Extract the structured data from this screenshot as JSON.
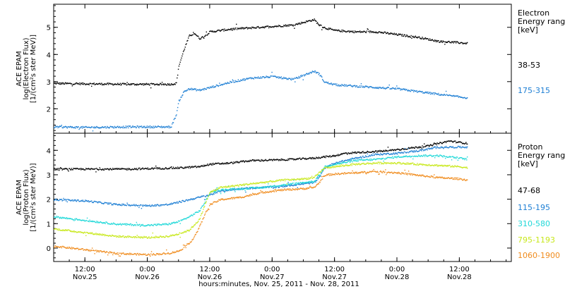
{
  "chart_data": {
    "type": "scatter",
    "xlabel": "hours:minutes, Nov. 25, 2011 - Nov. 28, 2011",
    "xlim": [
      6,
      94
    ],
    "x_units": "hours since 2011-11-25 00:00 UT",
    "x_ticks": [
      {
        "x": 12,
        "time": "12:00",
        "date": "Nov.25"
      },
      {
        "x": 24,
        "time": "0:00",
        "date": "Nov.26"
      },
      {
        "x": 36,
        "time": "12:00",
        "date": "Nov.26"
      },
      {
        "x": 48,
        "time": "0:00",
        "date": "Nov.27"
      },
      {
        "x": 60,
        "time": "12:00",
        "date": "Nov.27"
      },
      {
        "x": 72,
        "time": "0:00",
        "date": "Nov.28"
      },
      {
        "x": 84,
        "time": "12:00",
        "date": "Nov.28"
      }
    ],
    "panels": [
      {
        "id": "electron",
        "ylabel_lines": [
          "ACE EPAM",
          "log(Electron Flux)",
          "[1/(cm²s ster MeV)]"
        ],
        "ylim": [
          1.1,
          5.85
        ],
        "y_ticks": [
          2,
          3,
          4,
          5
        ],
        "legend_title": [
          "Electron",
          "Energy ranges",
          "[keV]"
        ],
        "series": [
          {
            "name": "38-53",
            "color": "#000000",
            "points": [
              [
                6,
                2.95
              ],
              [
                20,
                2.92
              ],
              [
                28.5,
                2.92
              ],
              [
                29.5,
                2.95
              ],
              [
                30,
                3.6
              ],
              [
                31,
                4.2
              ],
              [
                32,
                4.7
              ],
              [
                33,
                4.8
              ],
              [
                34,
                4.6
              ],
              [
                35,
                4.7
              ],
              [
                36,
                4.85
              ],
              [
                40,
                4.95
              ],
              [
                44,
                5.0
              ],
              [
                48,
                5.05
              ],
              [
                52,
                5.1
              ],
              [
                54,
                5.2
              ],
              [
                56,
                5.3
              ],
              [
                57,
                5.1
              ],
              [
                58,
                5.0
              ],
              [
                60,
                4.9
              ],
              [
                64,
                4.85
              ],
              [
                68,
                4.85
              ],
              [
                72,
                4.75
              ],
              [
                76,
                4.65
              ],
              [
                80,
                4.5
              ],
              [
                84,
                4.45
              ],
              [
                85.5,
                4.42
              ]
            ]
          },
          {
            "name": "175-315",
            "color": "#1e7fd4",
            "points": [
              [
                6,
                1.35
              ],
              [
                12,
                1.33
              ],
              [
                20,
                1.35
              ],
              [
                28.5,
                1.35
              ],
              [
                29.5,
                1.8
              ],
              [
                30,
                2.3
              ],
              [
                31,
                2.65
              ],
              [
                32,
                2.75
              ],
              [
                34,
                2.7
              ],
              [
                36,
                2.8
              ],
              [
                40,
                3.0
              ],
              [
                44,
                3.15
              ],
              [
                48,
                3.2
              ],
              [
                52,
                3.1
              ],
              [
                54,
                3.25
              ],
              [
                56,
                3.4
              ],
              [
                57,
                3.3
              ],
              [
                58,
                3.0
              ],
              [
                60,
                2.9
              ],
              [
                64,
                2.85
              ],
              [
                68,
                2.8
              ],
              [
                72,
                2.75
              ],
              [
                76,
                2.65
              ],
              [
                80,
                2.55
              ],
              [
                84,
                2.45
              ],
              [
                85.5,
                2.42
              ]
            ]
          }
        ]
      },
      {
        "id": "proton",
        "ylabel_lines": [
          "ACE EPAM",
          "log(Proton Flux)",
          "[1/(cm²s ster MeV)]"
        ],
        "ylim": [
          -0.55,
          4.7
        ],
        "y_ticks": [
          0,
          1,
          2,
          3,
          4
        ],
        "legend_title": [
          "Proton",
          "Energy ranges",
          "[keV]"
        ],
        "series": [
          {
            "name": "47-68",
            "color": "#000000",
            "points": [
              [
                6,
                3.25
              ],
              [
                20,
                3.25
              ],
              [
                30,
                3.3
              ],
              [
                34,
                3.35
              ],
              [
                36,
                3.45
              ],
              [
                40,
                3.5
              ],
              [
                44,
                3.6
              ],
              [
                48,
                3.62
              ],
              [
                52,
                3.65
              ],
              [
                56,
                3.7
              ],
              [
                58,
                3.75
              ],
              [
                60,
                3.8
              ],
              [
                62,
                3.9
              ],
              [
                66,
                3.95
              ],
              [
                70,
                4.0
              ],
              [
                74,
                4.1
              ],
              [
                78,
                4.2
              ],
              [
                80,
                4.3
              ],
              [
                82,
                4.4
              ],
              [
                85.5,
                4.3
              ]
            ]
          },
          {
            "name": "115-195",
            "color": "#1e7fd4",
            "points": [
              [
                6,
                2.0
              ],
              [
                12,
                1.95
              ],
              [
                18,
                1.8
              ],
              [
                24,
                1.75
              ],
              [
                28,
                1.8
              ],
              [
                30,
                1.9
              ],
              [
                32,
                2.0
              ],
              [
                34,
                2.1
              ],
              [
                36,
                2.2
              ],
              [
                38,
                2.35
              ],
              [
                42,
                2.45
              ],
              [
                46,
                2.5
              ],
              [
                50,
                2.55
              ],
              [
                54,
                2.65
              ],
              [
                56,
                2.7
              ],
              [
                57,
                2.9
              ],
              [
                58,
                3.3
              ],
              [
                60,
                3.5
              ],
              [
                64,
                3.7
              ],
              [
                68,
                3.85
              ],
              [
                72,
                3.9
              ],
              [
                76,
                4.0
              ],
              [
                80,
                4.15
              ],
              [
                84,
                4.15
              ],
              [
                85.5,
                4.15
              ]
            ]
          },
          {
            "name": "310-580",
            "color": "#20d8d8",
            "points": [
              [
                6,
                1.3
              ],
              [
                12,
                1.15
              ],
              [
                18,
                1.0
              ],
              [
                24,
                0.95
              ],
              [
                28,
                1.0
              ],
              [
                30,
                1.1
              ],
              [
                32,
                1.3
              ],
              [
                34,
                1.55
              ],
              [
                35,
                1.9
              ],
              [
                36,
                2.3
              ],
              [
                38,
                2.4
              ],
              [
                42,
                2.45
              ],
              [
                46,
                2.5
              ],
              [
                50,
                2.6
              ],
              [
                54,
                2.7
              ],
              [
                56,
                2.75
              ],
              [
                57,
                3.0
              ],
              [
                58,
                3.35
              ],
              [
                60,
                3.45
              ],
              [
                64,
                3.6
              ],
              [
                68,
                3.65
              ],
              [
                72,
                3.75
              ],
              [
                76,
                3.8
              ],
              [
                80,
                3.8
              ],
              [
                84,
                3.7
              ],
              [
                85.5,
                3.65
              ]
            ]
          },
          {
            "name": "795-1193",
            "color": "#c8e81c",
            "points": [
              [
                6,
                0.8
              ],
              [
                12,
                0.65
              ],
              [
                18,
                0.5
              ],
              [
                24,
                0.45
              ],
              [
                28,
                0.5
              ],
              [
                30,
                0.6
              ],
              [
                32,
                0.75
              ],
              [
                34,
                1.2
              ],
              [
                35,
                1.8
              ],
              [
                36,
                2.3
              ],
              [
                38,
                2.5
              ],
              [
                42,
                2.6
              ],
              [
                46,
                2.7
              ],
              [
                50,
                2.8
              ],
              [
                54,
                2.85
              ],
              [
                56,
                2.9
              ],
              [
                57,
                3.1
              ],
              [
                58,
                3.3
              ],
              [
                60,
                3.35
              ],
              [
                64,
                3.45
              ],
              [
                68,
                3.5
              ],
              [
                72,
                3.5
              ],
              [
                76,
                3.45
              ],
              [
                80,
                3.4
              ],
              [
                84,
                3.35
              ],
              [
                85.5,
                3.3
              ]
            ]
          },
          {
            "name": "1060-1900",
            "color": "#f08c1e",
            "points": [
              [
                6,
                0.1
              ],
              [
                12,
                -0.05
              ],
              [
                18,
                -0.2
              ],
              [
                24,
                -0.25
              ],
              [
                28,
                -0.2
              ],
              [
                30,
                -0.1
              ],
              [
                32,
                0.2
              ],
              [
                33,
                0.5
              ],
              [
                34,
                0.9
              ],
              [
                35,
                1.4
              ],
              [
                36,
                1.8
              ],
              [
                38,
                2.0
              ],
              [
                42,
                2.1
              ],
              [
                46,
                2.3
              ],
              [
                50,
                2.4
              ],
              [
                54,
                2.45
              ],
              [
                56,
                2.5
              ],
              [
                57,
                2.7
              ],
              [
                58,
                3.0
              ],
              [
                60,
                3.05
              ],
              [
                64,
                3.1
              ],
              [
                68,
                3.15
              ],
              [
                72,
                3.1
              ],
              [
                76,
                3.0
              ],
              [
                80,
                2.9
              ],
              [
                84,
                2.85
              ],
              [
                85.5,
                2.8
              ]
            ]
          }
        ]
      }
    ]
  }
}
